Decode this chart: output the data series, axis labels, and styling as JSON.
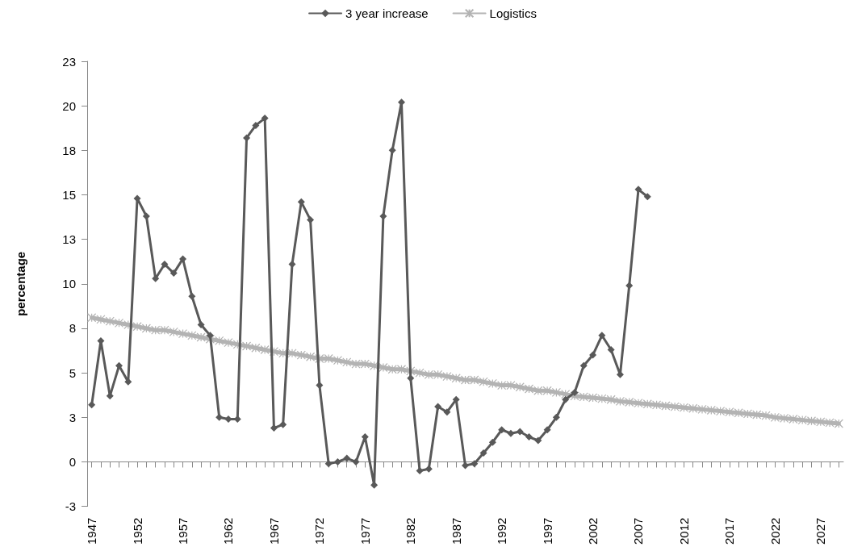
{
  "chart_data": {
    "type": "line",
    "ylabel": "percentage",
    "categories": [
      "1947",
      null,
      null,
      null,
      null,
      "1952",
      null,
      null,
      null,
      null,
      "1957",
      null,
      null,
      null,
      null,
      "1962",
      null,
      null,
      null,
      null,
      "1967",
      null,
      null,
      null,
      null,
      "1972",
      null,
      null,
      null,
      null,
      "1977",
      null,
      null,
      null,
      null,
      "1982",
      null,
      null,
      null,
      null,
      "1987",
      null,
      null,
      null,
      null,
      "1992",
      null,
      null,
      null,
      null,
      "1997",
      null,
      null,
      null,
      null,
      "2002",
      null,
      null,
      null,
      null,
      "2007",
      null,
      null,
      null,
      null,
      "2012",
      null,
      null,
      null,
      null,
      "2017",
      null,
      null,
      null,
      null,
      "2022",
      null,
      null,
      null,
      null,
      "2027",
      null,
      null
    ],
    "series": [
      {
        "name": "3 year increase",
        "color": "#595959",
        "marker": "diamond",
        "values": [
          3.2,
          6.8,
          3.7,
          5.4,
          4.5,
          14.8,
          13.8,
          10.3,
          11.1,
          10.6,
          11.4,
          9.3,
          7.7,
          7.1,
          2.5,
          2.4,
          2.4,
          18.2,
          18.9,
          19.3,
          1.9,
          2.1,
          11.1,
          14.6,
          13.6,
          4.3,
          -0.1,
          0.0,
          0.2,
          0.0,
          1.4,
          -1.3,
          13.8,
          17.5,
          20.2,
          4.7,
          -0.5,
          -0.4,
          3.1,
          2.8,
          3.5,
          -0.2,
          -0.1,
          0.5,
          1.1,
          1.8,
          1.6,
          1.7,
          1.4,
          1.2,
          1.8,
          2.5,
          3.5,
          3.9,
          5.4,
          6.0,
          7.1,
          6.3,
          4.9,
          9.9,
          15.3,
          14.9,
          null,
          null,
          null,
          null,
          null,
          null,
          null,
          null,
          null,
          null,
          null,
          null,
          null,
          null,
          null,
          null,
          null,
          null,
          null,
          null,
          null
        ]
      },
      {
        "name": "Logistics",
        "color": "#b3b3b3",
        "marker": "cross",
        "values": [
          8.1,
          8.0,
          7.9,
          7.8,
          7.7,
          7.6,
          7.5,
          7.4,
          7.4,
          7.3,
          7.2,
          7.1,
          7.0,
          6.9,
          6.8,
          6.7,
          6.6,
          6.5,
          6.4,
          6.3,
          6.2,
          6.1,
          6.1,
          6.0,
          5.9,
          5.8,
          5.8,
          5.7,
          5.6,
          5.5,
          5.5,
          5.4,
          5.3,
          5.2,
          5.2,
          5.1,
          5.0,
          4.9,
          4.9,
          4.8,
          4.7,
          4.6,
          4.6,
          4.5,
          4.4,
          4.3,
          4.3,
          4.2,
          4.1,
          4.0,
          4.0,
          3.9,
          3.8,
          3.7,
          3.65,
          3.6,
          3.55,
          3.5,
          3.4,
          3.35,
          3.3,
          3.25,
          3.2,
          3.15,
          3.1,
          3.05,
          3.0,
          2.95,
          2.9,
          2.85,
          2.8,
          2.75,
          2.7,
          2.65,
          2.6,
          2.5,
          2.45,
          2.4,
          2.35,
          2.3,
          2.25,
          2.2,
          2.15
        ]
      }
    ],
    "ylim": [
      -2.5,
      22.5
    ],
    "yticks": [
      {
        "value": -2.5,
        "label": "-3"
      },
      0,
      {
        "value": 2.5,
        "label": "3"
      },
      5,
      {
        "value": 7.5,
        "label": "8"
      },
      10,
      {
        "value": 12.5,
        "label": "13"
      },
      15,
      {
        "value": 17.5,
        "label": "18"
      },
      20,
      {
        "value": 22.5,
        "label": "23"
      }
    ],
    "legend": "top"
  }
}
